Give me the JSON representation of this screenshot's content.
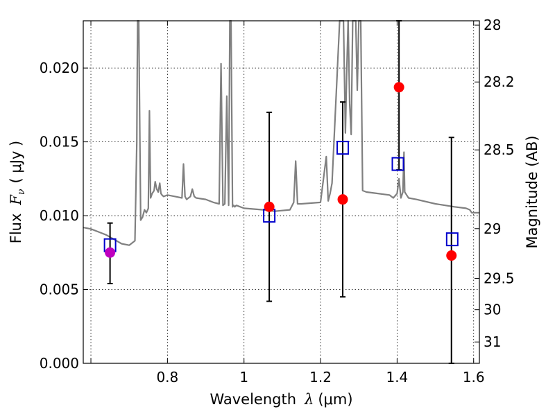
{
  "chart_data": {
    "type": "scatter",
    "xlabel_text": "Wavelength",
    "xlabel_symbol": "λ",
    "xlabel_unit": "(μm)",
    "ylabel_text": "Flux",
    "ylabel_symbol": "F",
    "ylabel_sub": "ν",
    "ylabel_unit": "( μJy )",
    "y2label": "Magnitude (AB)",
    "xlim": [
      0.58,
      1.615
    ],
    "ylim": [
      0.0,
      0.0232
    ],
    "grid": true,
    "x_ticks": [
      {
        "value": 0.6,
        "label": ""
      },
      {
        "value": 0.8,
        "label": "0.8"
      },
      {
        "value": 1.0,
        "label": "1"
      },
      {
        "value": 1.2,
        "label": "1.2"
      },
      {
        "value": 1.4,
        "label": "1.4"
      },
      {
        "value": 1.6,
        "label": "1.6"
      }
    ],
    "y_ticks": [
      {
        "value": 0.0,
        "label": "0.000"
      },
      {
        "value": 0.005,
        "label": "0.005"
      },
      {
        "value": 0.01,
        "label": "0.010"
      },
      {
        "value": 0.015,
        "label": "0.015"
      },
      {
        "value": 0.02,
        "label": "0.020"
      }
    ],
    "magnitude_ticks": [
      "28",
      "28.2",
      "28.5",
      "29",
      "29.5",
      "30",
      "31"
    ],
    "model_spectrum": {
      "color": "#808080",
      "x": [
        0.58,
        0.6,
        0.62,
        0.64,
        0.66,
        0.68,
        0.7,
        0.715,
        0.72,
        0.722,
        0.725,
        0.728,
        0.73,
        0.735,
        0.74,
        0.745,
        0.75,
        0.753,
        0.756,
        0.76,
        0.765,
        0.768,
        0.772,
        0.776,
        0.78,
        0.783,
        0.786,
        0.79,
        0.8,
        0.82,
        0.838,
        0.842,
        0.846,
        0.85,
        0.86,
        0.865,
        0.87,
        0.875,
        0.9,
        0.92,
        0.935,
        0.94,
        0.945,
        0.95,
        0.955,
        0.96,
        0.963,
        0.966,
        0.97,
        0.973,
        0.976,
        0.98,
        1.0,
        1.05,
        1.08,
        1.12,
        1.13,
        1.135,
        1.14,
        1.15,
        1.2,
        1.215,
        1.22,
        1.225,
        1.23,
        1.25,
        1.26,
        1.265,
        1.268,
        1.272,
        1.276,
        1.28,
        1.284,
        1.288,
        1.292,
        1.296,
        1.3,
        1.305,
        1.31,
        1.32,
        1.35,
        1.38,
        1.39,
        1.4,
        1.405,
        1.41,
        1.415,
        1.418,
        1.42,
        1.425,
        1.43,
        1.45,
        1.5,
        1.55,
        1.58,
        1.59,
        1.595,
        1.6,
        1.615
      ],
      "y": [
        0.0092,
        0.0091,
        0.0089,
        0.0087,
        0.0084,
        0.0081,
        0.008,
        0.0083,
        0.015,
        0.0235,
        0.0235,
        0.015,
        0.0097,
        0.0099,
        0.0104,
        0.0102,
        0.0105,
        0.0171,
        0.0112,
        0.0115,
        0.0117,
        0.0123,
        0.0118,
        0.0116,
        0.0122,
        0.0115,
        0.0114,
        0.0113,
        0.0114,
        0.0113,
        0.0112,
        0.0135,
        0.0113,
        0.0111,
        0.0113,
        0.0118,
        0.0113,
        0.0112,
        0.0111,
        0.0109,
        0.0108,
        0.0203,
        0.0107,
        0.0108,
        0.0181,
        0.0107,
        0.0235,
        0.0235,
        0.0106,
        0.0107,
        0.0106,
        0.0107,
        0.0105,
        0.0104,
        0.0103,
        0.0104,
        0.0109,
        0.0137,
        0.0108,
        0.0108,
        0.0109,
        0.014,
        0.011,
        0.0115,
        0.0122,
        0.0235,
        0.0235,
        0.0156,
        0.0194,
        0.0235,
        0.0176,
        0.0155,
        0.0235,
        0.0235,
        0.0235,
        0.0185,
        0.0235,
        0.0235,
        0.0117,
        0.0116,
        0.0115,
        0.0114,
        0.0112,
        0.0115,
        0.0125,
        0.0112,
        0.0116,
        0.0143,
        0.0116,
        0.0114,
        0.0112,
        0.0111,
        0.0108,
        0.0106,
        0.0105,
        0.0104,
        0.0102,
        0.0102,
        0.0102
      ]
    },
    "observed_points": [
      {
        "x": 0.65,
        "y": 0.0075,
        "yerr_low": 0.0054,
        "yerr_high": 0.0095,
        "color": "#bf00bf"
      },
      {
        "x": 1.066,
        "y": 0.0106,
        "yerr_low": 0.0042,
        "yerr_high": 0.017,
        "color": "#ff0000"
      },
      {
        "x": 1.258,
        "y": 0.0111,
        "yerr_low": 0.0045,
        "yerr_high": 0.0177,
        "color": "#ff0000"
      },
      {
        "x": 1.405,
        "y": 0.0187,
        "yerr_low": 0.0131,
        "yerr_high": 0.0235,
        "color": "#ff0000"
      },
      {
        "x": 1.542,
        "y": 0.0073,
        "yerr_low": 0.0,
        "yerr_high": 0.0153,
        "color": "#ff0000"
      }
    ],
    "model_points": {
      "color": "#0000cc",
      "x": [
        0.65,
        1.066,
        1.258,
        1.402,
        1.544
      ],
      "y": [
        0.008,
        0.01,
        0.0146,
        0.0135,
        0.0084
      ]
    }
  }
}
